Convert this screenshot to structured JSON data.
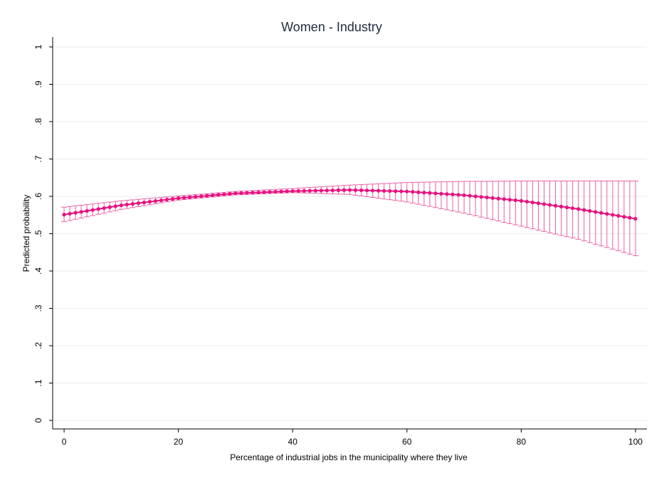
{
  "chart_data": {
    "type": "line",
    "title": "Women - Industry",
    "xlabel": "Percentage of industrial jobs in the municipality where they live",
    "ylabel": "Predicted probability",
    "xlim": [
      -2,
      102
    ],
    "ylim": [
      0,
      1
    ],
    "xticks": [
      0,
      20,
      40,
      60,
      80,
      100
    ],
    "yticks": [
      0,
      0.1,
      0.2,
      0.3,
      0.4,
      0.5,
      0.6,
      0.7,
      0.8,
      0.9,
      1
    ],
    "ytick_labels": [
      "0",
      ".1",
      ".2",
      ".3",
      ".4",
      ".5",
      ".6",
      ".7",
      ".8",
      ".9",
      "1"
    ],
    "grid": true,
    "legend": "none",
    "series": [
      {
        "color": "#e8117f",
        "ci_color": "#ec5fa5",
        "x": [
          0,
          10,
          20,
          30,
          40,
          50,
          60,
          70,
          80,
          90,
          100
        ],
        "y": [
          0.551,
          0.576,
          0.595,
          0.608,
          0.614,
          0.617,
          0.613,
          0.603,
          0.588,
          0.566,
          0.54
        ],
        "ci_lower": [
          0.532,
          0.565,
          0.59,
          0.604,
          0.61,
          0.605,
          0.585,
          0.555,
          0.52,
          0.485,
          0.441
        ],
        "ci_upper": [
          0.571,
          0.588,
          0.601,
          0.613,
          0.621,
          0.63,
          0.637,
          0.64,
          0.641,
          0.641,
          0.641
        ]
      }
    ]
  }
}
